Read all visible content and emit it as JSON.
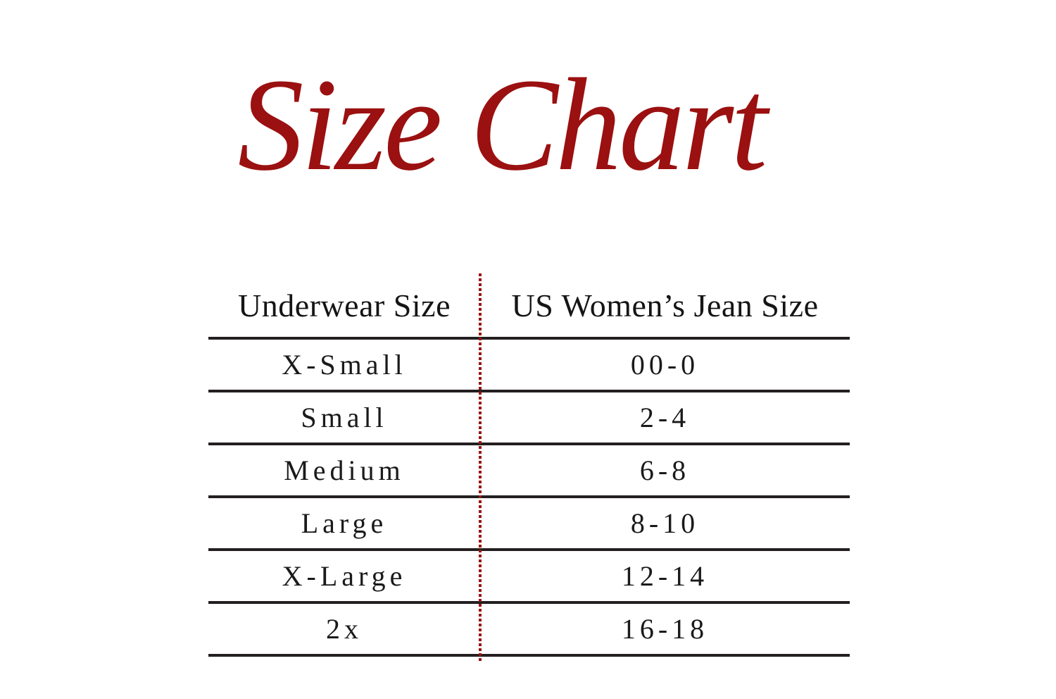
{
  "title": "Size Chart",
  "colors": {
    "title_red": "#9B1010",
    "divider_red": "#991414",
    "rule_black": "#231F20",
    "text_black": "#1A1A1A",
    "background": "#FFFFFF"
  },
  "table": {
    "headers": {
      "underwear": "Underwear Size",
      "jean": "US Women’s Jean Size"
    },
    "rows": [
      {
        "size": "X-Small",
        "jean": "00-0"
      },
      {
        "size": "Small",
        "jean": "2-4"
      },
      {
        "size": "Medium",
        "jean": "6-8"
      },
      {
        "size": "Large",
        "jean": "8-10"
      },
      {
        "size": "X-Large",
        "jean": "12-14"
      },
      {
        "size": "2x",
        "jean": "16-18"
      }
    ]
  }
}
